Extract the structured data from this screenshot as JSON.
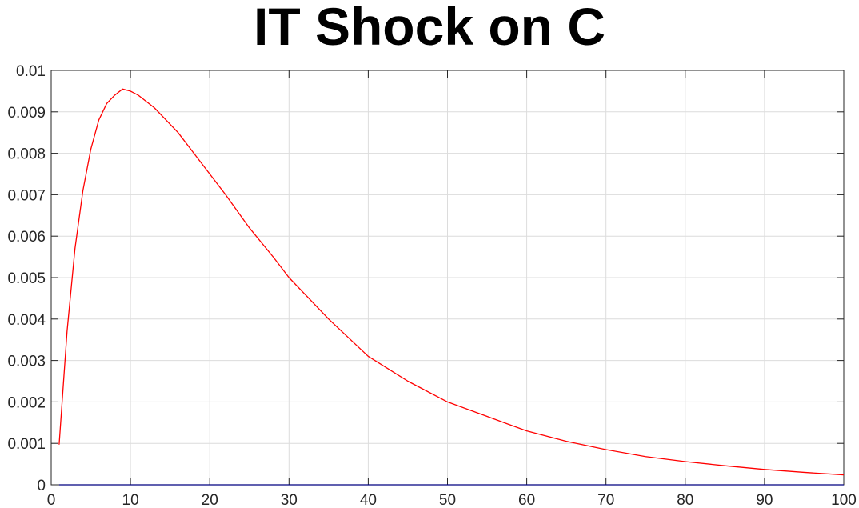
{
  "chart_data": {
    "type": "line",
    "title": "IT Shock on C",
    "xlabel": "",
    "ylabel": "",
    "xlim": [
      0,
      100
    ],
    "ylim": [
      0,
      0.01
    ],
    "grid": true,
    "x_ticks": [
      "0",
      "10",
      "20",
      "30",
      "40",
      "50",
      "60",
      "70",
      "80",
      "90",
      "100"
    ],
    "y_ticks": [
      "0",
      "0.001",
      "0.002",
      "0.003",
      "0.004",
      "0.005",
      "0.006",
      "0.007",
      "0.008",
      "0.009",
      "0.01"
    ],
    "series": [
      {
        "color": "#ff0000",
        "x": [
          1,
          2,
          3,
          4,
          5,
          6,
          7,
          8,
          9,
          10,
          11,
          12,
          13,
          14,
          16,
          18,
          20,
          22,
          25,
          28,
          30,
          35,
          40,
          45,
          50,
          55,
          60,
          65,
          70,
          75,
          80,
          85,
          90,
          95,
          100
        ],
        "y": [
          0.00097,
          0.0037,
          0.0057,
          0.0071,
          0.0081,
          0.0088,
          0.0092,
          0.0094,
          0.00955,
          0.0095,
          0.0094,
          0.00925,
          0.0091,
          0.0089,
          0.0085,
          0.008,
          0.0075,
          0.007,
          0.0062,
          0.0055,
          0.005,
          0.004,
          0.0031,
          0.0025,
          0.002,
          0.00165,
          0.0013,
          0.00105,
          0.00085,
          0.00068,
          0.00056,
          0.00046,
          0.00037,
          0.0003,
          0.00024
        ]
      },
      {
        "color": "#000080",
        "x": [
          1,
          100
        ],
        "y": [
          0,
          0
        ]
      }
    ]
  }
}
